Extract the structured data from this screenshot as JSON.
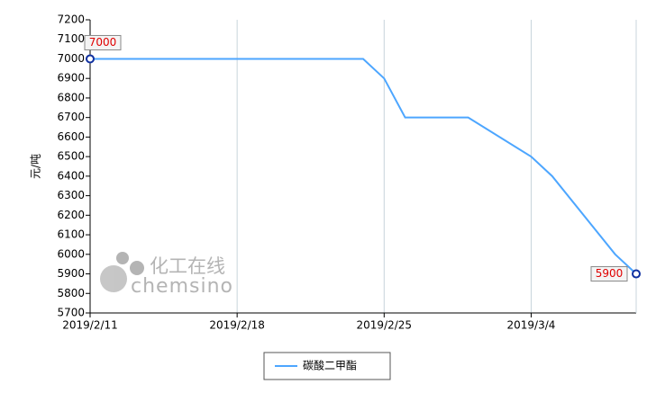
{
  "chart_data": {
    "type": "line",
    "y_label": "元/吨",
    "watermark": {
      "cn": "化工在线",
      "en": "chemsino"
    },
    "x": [
      "2019/2/11",
      "2019/2/24",
      "2019/2/25",
      "2019/2/26",
      "2019/3/1",
      "2019/3/4",
      "2019/3/5",
      "2019/3/8",
      "2019/3/9"
    ],
    "series": [
      {
        "name": "碳酸二甲酯",
        "color": "#4da6ff",
        "values": [
          7000,
          7000,
          6900,
          6700,
          6700,
          6500,
          6400,
          6000,
          5900
        ]
      }
    ],
    "xlim": [
      "2019/2/11",
      "2019/3/9"
    ],
    "xticks": [
      "2019/2/11",
      "2019/2/18",
      "2019/2/25",
      "2019/3/4"
    ],
    "ylim": [
      5700,
      7200
    ],
    "yticks": [
      5700,
      5800,
      5900,
      6000,
      6100,
      6200,
      6300,
      6400,
      6500,
      6600,
      6700,
      6800,
      6900,
      7000,
      7100,
      7200
    ],
    "grid": "x",
    "legend": "bottom"
  }
}
